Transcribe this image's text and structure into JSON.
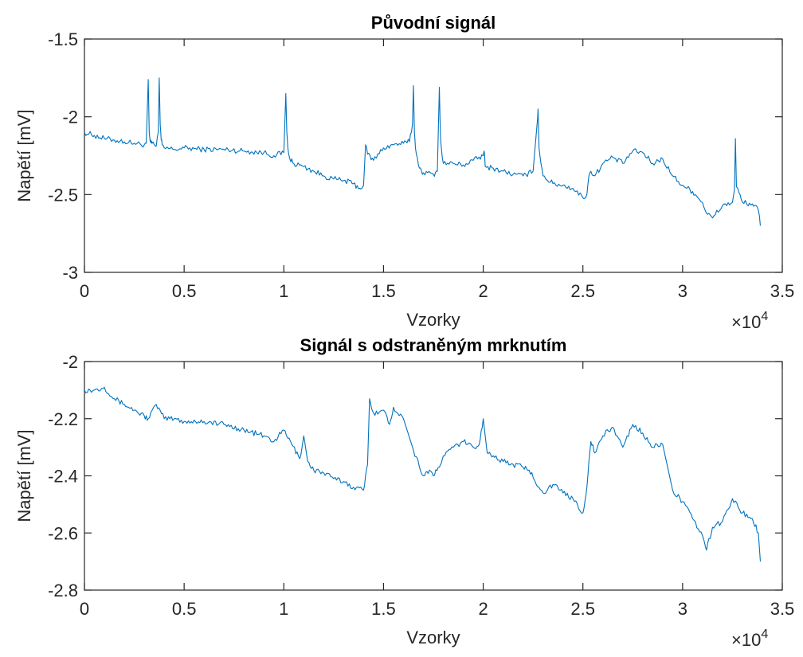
{
  "chart_data": [
    {
      "type": "line",
      "title": "Původní signál",
      "xlabel": "Vzorky",
      "ylabel": "Napětí [mV]",
      "xlim": [
        0,
        3.5
      ],
      "ylim": [
        -3,
        -1.5
      ],
      "x_multiplier": "×10",
      "x_multiplier_exponent": "4",
      "xticks": [
        0,
        0.5,
        1,
        1.5,
        2,
        2.5,
        3,
        3.5
      ],
      "xtick_labels": [
        "0",
        "0.5",
        "1",
        "1.5",
        "2",
        "2.5",
        "3",
        "3.5"
      ],
      "yticks": [
        -3,
        -2.5,
        -2,
        -1.5
      ],
      "ytick_labels": [
        "-3",
        "-2.5",
        "-2",
        "-1.5"
      ],
      "grid": false,
      "color": "#0072BD",
      "series": [
        {
          "x": [
            0,
            0.05,
            0.1,
            0.15,
            0.2,
            0.25,
            0.3,
            0.31,
            0.32,
            0.325,
            0.33,
            0.335,
            0.34,
            0.35,
            0.36,
            0.37,
            0.375,
            0.38,
            0.385,
            0.39,
            0.4,
            0.45,
            0.5,
            0.6,
            0.7,
            0.8,
            0.9,
            0.95,
            1.0,
            1.01,
            1.015,
            1.02,
            1.03,
            1.05,
            1.1,
            1.15,
            1.2,
            1.25,
            1.3,
            1.35,
            1.38,
            1.4,
            1.41,
            1.42,
            1.45,
            1.5,
            1.55,
            1.6,
            1.63,
            1.645,
            1.65,
            1.655,
            1.66,
            1.68,
            1.7,
            1.75,
            1.77,
            1.78,
            1.785,
            1.79,
            1.8,
            1.85,
            1.9,
            1.95,
            2.0,
            2.005,
            2.01,
            2.05,
            2.1,
            2.15,
            2.2,
            2.25,
            2.27,
            2.275,
            2.28,
            2.3,
            2.35,
            2.4,
            2.45,
            2.5,
            2.52,
            2.53,
            2.54,
            2.56,
            2.6,
            2.65,
            2.7,
            2.75,
            2.8,
            2.85,
            2.9,
            2.95,
            3.0,
            3.05,
            3.1,
            3.12,
            3.15,
            3.2,
            3.25,
            3.26,
            3.265,
            3.27,
            3.3,
            3.35,
            3.38,
            3.39
          ],
          "y": [
            -2.1,
            -2.12,
            -2.14,
            -2.15,
            -2.16,
            -2.17,
            -2.18,
            -2.17,
            -1.76,
            -2.1,
            -2.16,
            -2.17,
            -2.17,
            -2.18,
            -2.19,
            -2.1,
            -1.75,
            -2.05,
            -2.15,
            -2.18,
            -2.2,
            -2.21,
            -2.2,
            -2.21,
            -2.21,
            -2.22,
            -2.23,
            -2.25,
            -2.23,
            -1.85,
            -2.1,
            -2.2,
            -2.27,
            -2.3,
            -2.32,
            -2.35,
            -2.38,
            -2.4,
            -2.41,
            -2.43,
            -2.46,
            -2.44,
            -2.18,
            -2.24,
            -2.28,
            -2.2,
            -2.18,
            -2.17,
            -2.16,
            -2.05,
            -1.8,
            -2.1,
            -2.2,
            -2.33,
            -2.36,
            -2.37,
            -2.35,
            -1.81,
            -2.1,
            -2.2,
            -2.3,
            -2.3,
            -2.31,
            -2.28,
            -2.25,
            -2.22,
            -2.32,
            -2.33,
            -2.35,
            -2.37,
            -2.38,
            -2.35,
            -2.05,
            -1.95,
            -2.2,
            -2.38,
            -2.43,
            -2.44,
            -2.46,
            -2.52,
            -2.5,
            -2.38,
            -2.35,
            -2.38,
            -2.3,
            -2.26,
            -2.3,
            -2.22,
            -2.23,
            -2.3,
            -2.27,
            -2.38,
            -2.44,
            -2.48,
            -2.55,
            -2.62,
            -2.65,
            -2.57,
            -2.55,
            -2.47,
            -2.14,
            -2.45,
            -2.55,
            -2.56,
            -2.6,
            -2.7
          ]
        }
      ]
    },
    {
      "type": "line",
      "title": "Signál s odstraněným mrknutím",
      "xlabel": "Vzorky",
      "ylabel": "Napětí [mV]",
      "xlim": [
        0,
        3.5
      ],
      "ylim": [
        -2.8,
        -2
      ],
      "x_multiplier": "×10",
      "x_multiplier_exponent": "4",
      "xticks": [
        0,
        0.5,
        1,
        1.5,
        2,
        2.5,
        3,
        3.5
      ],
      "xtick_labels": [
        "0",
        "0.5",
        "1",
        "1.5",
        "2",
        "2.5",
        "3",
        "3.5"
      ],
      "yticks": [
        -2.8,
        -2.6,
        -2.4,
        -2.2,
        -2
      ],
      "ytick_labels": [
        "-2.8",
        "-2.6",
        "-2.4",
        "-2.2",
        "-2"
      ],
      "grid": false,
      "color": "#0072BD",
      "series": [
        {
          "x": [
            0,
            0.05,
            0.1,
            0.15,
            0.2,
            0.25,
            0.3,
            0.32,
            0.36,
            0.4,
            0.45,
            0.5,
            0.6,
            0.7,
            0.8,
            0.9,
            0.95,
            1.0,
            1.04,
            1.08,
            1.1,
            1.12,
            1.15,
            1.2,
            1.25,
            1.3,
            1.35,
            1.4,
            1.42,
            1.43,
            1.45,
            1.5,
            1.53,
            1.55,
            1.6,
            1.65,
            1.7,
            1.73,
            1.75,
            1.78,
            1.8,
            1.85,
            1.9,
            1.95,
            1.98,
            2.0,
            2.02,
            2.05,
            2.1,
            2.15,
            2.2,
            2.23,
            2.3,
            2.35,
            2.4,
            2.45,
            2.5,
            2.52,
            2.53,
            2.54,
            2.56,
            2.6,
            2.65,
            2.7,
            2.75,
            2.8,
            2.85,
            2.9,
            2.95,
            3.0,
            3.05,
            3.1,
            3.12,
            3.15,
            3.2,
            3.25,
            3.3,
            3.35,
            3.38,
            3.39
          ],
          "y": [
            -2.1,
            -2.1,
            -2.09,
            -2.13,
            -2.15,
            -2.17,
            -2.19,
            -2.2,
            -2.15,
            -2.2,
            -2.2,
            -2.21,
            -2.21,
            -2.22,
            -2.24,
            -2.26,
            -2.28,
            -2.24,
            -2.29,
            -2.34,
            -2.26,
            -2.35,
            -2.38,
            -2.39,
            -2.41,
            -2.42,
            -2.44,
            -2.45,
            -2.36,
            -2.13,
            -2.18,
            -2.17,
            -2.22,
            -2.16,
            -2.2,
            -2.31,
            -2.4,
            -2.38,
            -2.4,
            -2.37,
            -2.33,
            -2.3,
            -2.28,
            -2.3,
            -2.29,
            -2.2,
            -2.32,
            -2.33,
            -2.35,
            -2.36,
            -2.37,
            -2.38,
            -2.46,
            -2.43,
            -2.46,
            -2.48,
            -2.53,
            -2.44,
            -2.35,
            -2.28,
            -2.32,
            -2.26,
            -2.23,
            -2.3,
            -2.22,
            -2.25,
            -2.3,
            -2.29,
            -2.45,
            -2.49,
            -2.55,
            -2.61,
            -2.66,
            -2.58,
            -2.56,
            -2.48,
            -2.53,
            -2.55,
            -2.6,
            -2.7
          ]
        }
      ]
    }
  ]
}
